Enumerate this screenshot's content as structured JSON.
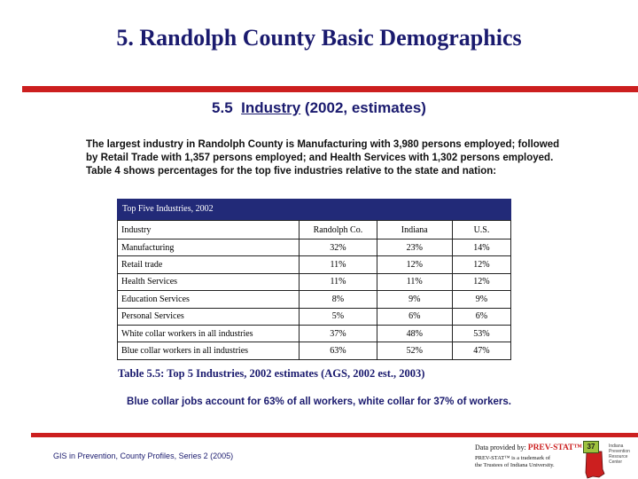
{
  "header": {
    "title": "5.   Randolph County Basic Demographics"
  },
  "section": {
    "number": "5.5",
    "topic": "Industry",
    "qualifier": "(2002, estimates)"
  },
  "intro_text": "The largest industry in Randolph County is Manufacturing with 3,980 persons employed; followed by Retail Trade with 1,357 persons employed; and Health Services with 1,302 persons employed.  Table 4 shows percentages for the top five industries relative to the state and nation:",
  "table": {
    "title": "Top Five Industries, 2002",
    "columns": [
      "Industry",
      "Randolph Co.",
      "Indiana",
      "U.S."
    ],
    "rows": [
      [
        "Manufacturing",
        "32%",
        "23%",
        "14%"
      ],
      [
        "Retail trade",
        "11%",
        "12%",
        "12%"
      ],
      [
        "Health Services",
        "11%",
        "11%",
        "12%"
      ],
      [
        "Education Services",
        "8%",
        "9%",
        "9%"
      ],
      [
        "Personal Services",
        "5%",
        "6%",
        "6%"
      ],
      [
        "White collar workers in all industries",
        "37%",
        "48%",
        "53%"
      ],
      [
        "Blue collar workers in all industries",
        "63%",
        "52%",
        "47%"
      ]
    ]
  },
  "caption": "Table 5.5:  Top 5 Industries, 2002 estimates (AGS, 2002 est., 2003)",
  "note": "Blue collar jobs account for 63% of all workers, white collar for 37% of workers.",
  "footer": {
    "series": "GIS in Prevention, County Profiles, Series 2 (2005)",
    "provided_by_prefix": "Data provided by:",
    "provider": "PREV-STAT™",
    "trademark_line1": "PREV-STAT™ is a trademark of",
    "trademark_line2": "the Trustees of Indiana University.",
    "page_number": "37",
    "logo_text": "Indiana Prevention Resource Center"
  },
  "colors": {
    "accent_red": "#cc1f1f",
    "navy": "#1a1a6e",
    "table_header": "#222a78"
  }
}
